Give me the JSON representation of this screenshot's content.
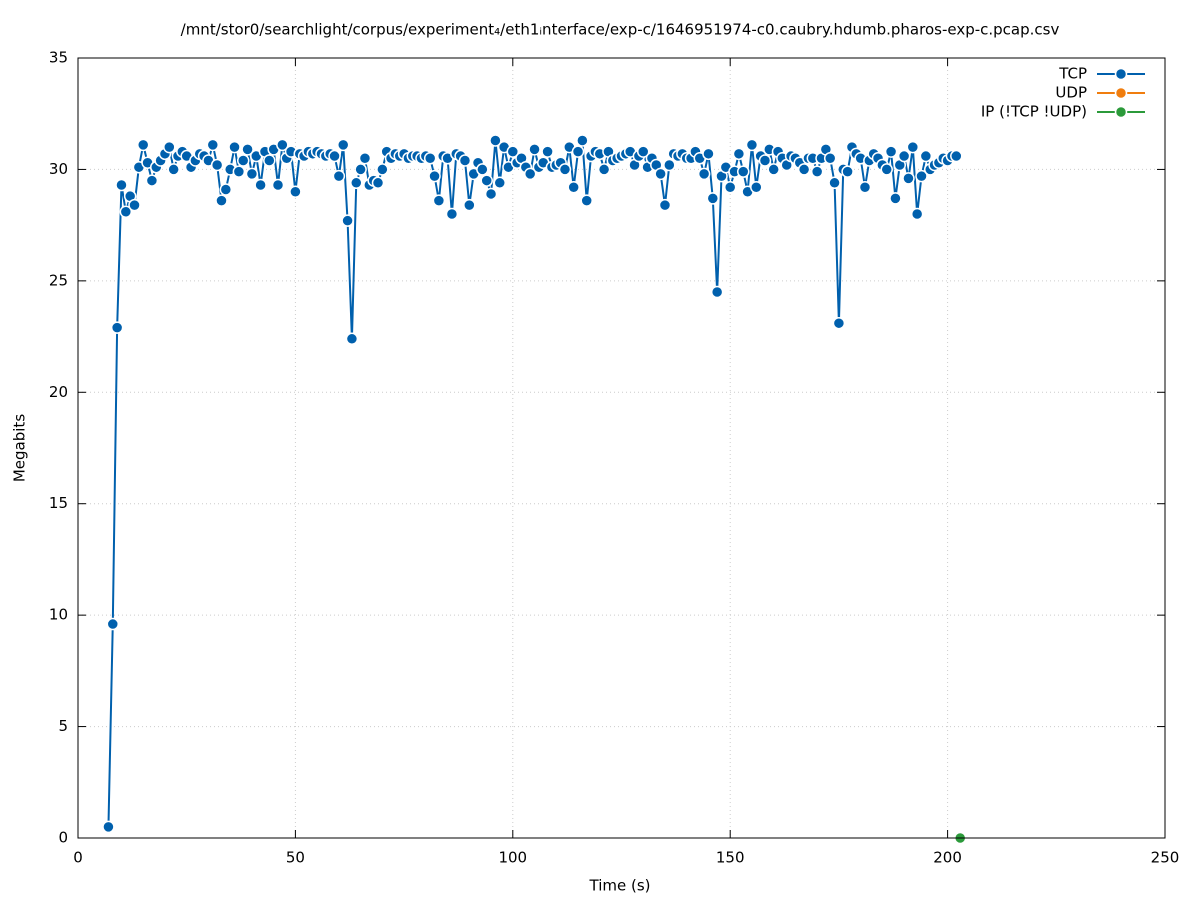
{
  "chart_data": {
    "type": "line",
    "title": "/mnt/stor0/searchlight/corpus/experiment₄/eth1ᵢnterface/exp-c/1646951974-c0.caubry.hdumb.pharos-exp-c.pcap.csv",
    "x_label": "Time (s)",
    "y_label": "Megabits",
    "xlim": [
      0,
      250
    ],
    "xticks": [
      0,
      50,
      100,
      150,
      200,
      250
    ],
    "ylim": [
      0,
      35
    ],
    "yticks": [
      0,
      5,
      10,
      15,
      20,
      25,
      30,
      35
    ],
    "grid": true,
    "legend": "top-right",
    "series": [
      {
        "name": "TCP",
        "color": "#0060ad",
        "x": [
          7,
          8,
          9,
          10,
          11,
          12,
          13,
          14,
          15,
          16,
          17,
          18,
          19,
          20,
          21,
          22,
          23,
          24,
          25,
          26,
          27,
          28,
          29,
          30,
          31,
          32,
          33,
          34,
          35,
          36,
          37,
          38,
          39,
          40,
          41,
          42,
          43,
          44,
          45,
          46,
          47,
          48,
          49,
          50,
          51,
          52,
          53,
          54,
          55,
          56,
          57,
          58,
          59,
          60,
          61,
          62,
          63,
          64,
          65,
          66,
          67,
          68,
          69,
          70,
          71,
          72,
          73,
          74,
          75,
          76,
          77,
          78,
          79,
          80,
          81,
          82,
          83,
          84,
          85,
          86,
          87,
          88,
          89,
          90,
          91,
          92,
          93,
          94,
          95,
          96,
          97,
          98,
          99,
          100,
          101,
          102,
          103,
          104,
          105,
          106,
          107,
          108,
          109,
          110,
          111,
          112,
          113,
          114,
          115,
          116,
          117,
          118,
          119,
          120,
          121,
          122,
          123,
          124,
          125,
          126,
          127,
          128,
          129,
          130,
          131,
          132,
          133,
          134,
          135,
          136,
          137,
          138,
          139,
          140,
          141,
          142,
          143,
          144,
          145,
          146,
          147,
          148,
          149,
          150,
          151,
          152,
          153,
          154,
          155,
          156,
          157,
          158,
          159,
          160,
          161,
          162,
          163,
          164,
          165,
          166,
          167,
          168,
          169,
          170,
          171,
          172,
          173,
          174,
          175,
          176,
          177,
          178,
          179,
          180,
          181,
          182,
          183,
          184,
          185,
          186,
          187,
          188,
          189,
          190,
          191,
          192,
          193,
          194,
          195,
          196,
          197,
          198,
          199,
          200,
          201,
          202
        ],
        "values": [
          0.5,
          9.6,
          22.9,
          29.3,
          28.1,
          28.8,
          28.4,
          30.1,
          31.1,
          30.3,
          29.5,
          30.1,
          30.4,
          30.7,
          31.0,
          30.0,
          30.6,
          30.8,
          30.6,
          30.1,
          30.4,
          30.7,
          30.6,
          30.4,
          31.1,
          30.2,
          28.6,
          29.1,
          30.0,
          31.0,
          29.9,
          30.4,
          30.9,
          29.8,
          30.6,
          29.3,
          30.8,
          30.4,
          30.9,
          29.3,
          31.1,
          30.5,
          30.8,
          29.0,
          30.7,
          30.6,
          30.8,
          30.7,
          30.8,
          30.7,
          30.6,
          30.7,
          30.6,
          29.7,
          31.1,
          27.7,
          22.4,
          29.4,
          30.0,
          30.5,
          29.3,
          29.5,
          29.4,
          30.0,
          30.8,
          30.5,
          30.7,
          30.6,
          30.7,
          30.5,
          30.6,
          30.6,
          30.5,
          30.6,
          30.5,
          29.7,
          28.6,
          30.6,
          30.5,
          28.0,
          30.7,
          30.6,
          30.4,
          28.4,
          29.8,
          30.3,
          30.0,
          29.5,
          28.9,
          31.3,
          29.4,
          31.0,
          30.1,
          30.8,
          30.3,
          30.5,
          30.1,
          29.8,
          30.9,
          30.1,
          30.3,
          30.8,
          30.1,
          30.2,
          30.3,
          30.0,
          31.0,
          29.2,
          30.8,
          31.3,
          28.6,
          30.6,
          30.8,
          30.7,
          30.0,
          30.8,
          30.4,
          30.5,
          30.6,
          30.7,
          30.8,
          30.2,
          30.6,
          30.8,
          30.1,
          30.5,
          30.2,
          29.8,
          28.4,
          30.2,
          30.7,
          30.6,
          30.7,
          30.5,
          30.5,
          30.8,
          30.5,
          29.8,
          30.7,
          28.7,
          24.5,
          29.7,
          30.1,
          29.2,
          29.9,
          30.7,
          29.9,
          29.0,
          31.1,
          29.2,
          30.6,
          30.4,
          30.9,
          30.0,
          30.8,
          30.5,
          30.2,
          30.6,
          30.5,
          30.3,
          30.0,
          30.5,
          30.5,
          29.9,
          30.5,
          30.9,
          30.5,
          29.4,
          23.1,
          30.0,
          29.9,
          31.0,
          30.7,
          30.5,
          29.2,
          30.4,
          30.7,
          30.5,
          30.2,
          30.0,
          30.8,
          28.7,
          30.2,
          30.6,
          29.6,
          31.0,
          28.0,
          29.7,
          30.6,
          30.0,
          30.2,
          30.3,
          30.5,
          30.4,
          30.6,
          30.6
        ]
      },
      {
        "name": "UDP",
        "color": "#f07d0e",
        "x": [
          202.9
        ],
        "values": [
          0
        ]
      },
      {
        "name": "IP (!TCP  !UDP)",
        "color": "#2b9a3a",
        "x": [
          202.9
        ],
        "values": [
          0
        ]
      }
    ]
  }
}
